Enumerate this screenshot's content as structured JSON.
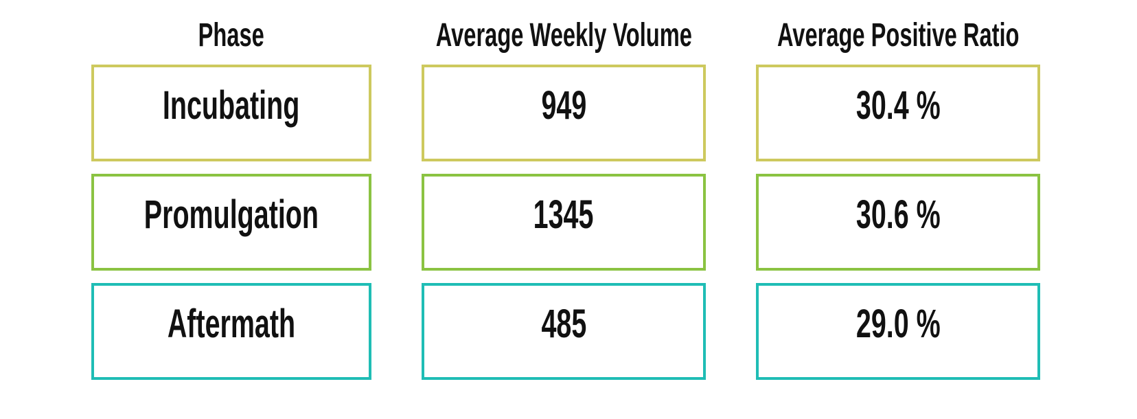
{
  "chart_data": {
    "type": "table",
    "title": "",
    "columns": [
      "Phase",
      "Average Weekly Volume",
      "Average Positive Ratio"
    ],
    "rows": [
      {
        "phase": "Incubating",
        "avg_weekly_volume": 949,
        "volume_label": "949",
        "avg_positive_ratio_pct": 30.4,
        "ratio_label": "30.4 %",
        "border_color": "#cdc95e"
      },
      {
        "phase": "Promulgation",
        "avg_weekly_volume": 1345,
        "volume_label": "1345",
        "avg_positive_ratio_pct": 30.6,
        "ratio_label": "30.6 %",
        "border_color": "#8bc342"
      },
      {
        "phase": "Aftermath",
        "avg_weekly_volume": 485,
        "volume_label": "485",
        "avg_positive_ratio_pct": 29.0,
        "ratio_label": "29.0 %",
        "border_color": "#1fbdb5"
      }
    ],
    "layout_hints": {
      "legend": false,
      "grid": false,
      "cell_background": "#ffffff",
      "text_color": "#111111"
    }
  },
  "colors": {
    "background": "#ffffff",
    "text": "#111111",
    "row_border_colors": [
      "#cdc95e",
      "#8bc342",
      "#1fbdb5"
    ]
  }
}
